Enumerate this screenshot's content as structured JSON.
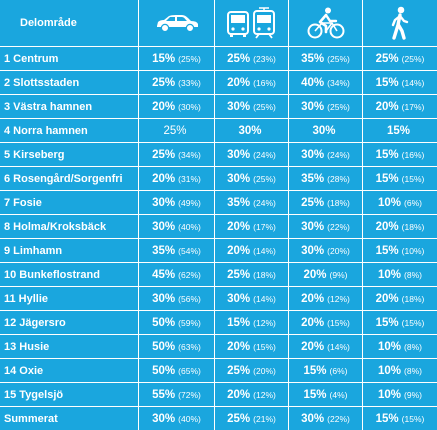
{
  "header": {
    "area_label": "Delområde",
    "icons": [
      "car-icon",
      "bus-train-icon",
      "bicycle-icon",
      "pedestrian-icon"
    ]
  },
  "rows": [
    {
      "area": "1 Centrum",
      "car": {
        "v": "15%",
        "p": "(25%)"
      },
      "transit": {
        "v": "25%",
        "p": "(23%)"
      },
      "bike": {
        "v": "35%",
        "p": "(25%)"
      },
      "walk": {
        "v": "25%",
        "p": "(25%)"
      }
    },
    {
      "area": "2 Slottsstaden",
      "car": {
        "v": "25%",
        "p": "(33%)"
      },
      "transit": {
        "v": "20%",
        "p": "(16%)"
      },
      "bike": {
        "v": "40%",
        "p": "(34%)"
      },
      "walk": {
        "v": "15%",
        "p": "(14%)"
      }
    },
    {
      "area": "3 Västra hamnen",
      "car": {
        "v": "20%",
        "p": "(30%)"
      },
      "transit": {
        "v": "30%",
        "p": "(25%)"
      },
      "bike": {
        "v": "30%",
        "p": "(25%)"
      },
      "walk": {
        "v": "20%",
        "p": "(17%)"
      }
    },
    {
      "area": "4 Norra hamnen",
      "car": {
        "v": "25%",
        "p": ""
      },
      "transit": {
        "v": "30%",
        "p": ""
      },
      "bike": {
        "v": "30%",
        "p": ""
      },
      "walk": {
        "v": "15%",
        "p": ""
      }
    },
    {
      "area": "5 Kirseberg",
      "car": {
        "v": "25%",
        "p": "(34%)"
      },
      "transit": {
        "v": "30%",
        "p": "(24%)"
      },
      "bike": {
        "v": "30%",
        "p": "(24%)"
      },
      "walk": {
        "v": "15%",
        "p": "(16%)"
      }
    },
    {
      "area": "6 Rosengård/Sorgenfri",
      "car": {
        "v": "20%",
        "p": "(31%)"
      },
      "transit": {
        "v": "30%",
        "p": "(25%)"
      },
      "bike": {
        "v": "35%",
        "p": "(28%)"
      },
      "walk": {
        "v": "15%",
        "p": "(15%)"
      }
    },
    {
      "area": "7 Fosie",
      "car": {
        "v": "30%",
        "p": "(49%)"
      },
      "transit": {
        "v": "35%",
        "p": "(24%)"
      },
      "bike": {
        "v": "25%",
        "p": "(18%)"
      },
      "walk": {
        "v": "10%",
        "p": "(6%)"
      }
    },
    {
      "area": "8 Holma/Kroksbäck",
      "car": {
        "v": "30%",
        "p": "(40%)"
      },
      "transit": {
        "v": "20%",
        "p": "(17%)"
      },
      "bike": {
        "v": "30%",
        "p": "(22%)"
      },
      "walk": {
        "v": "20%",
        "p": "(18%)"
      }
    },
    {
      "area": "9 Limhamn",
      "car": {
        "v": "35%",
        "p": "(54%)"
      },
      "transit": {
        "v": "20%",
        "p": "(14%)"
      },
      "bike": {
        "v": "30%",
        "p": "(20%)"
      },
      "walk": {
        "v": "15%",
        "p": "(10%)"
      }
    },
    {
      "area": "10 Bunkeflostrand",
      "car": {
        "v": "45%",
        "p": "(62%)"
      },
      "transit": {
        "v": "25%",
        "p": "(18%)"
      },
      "bike": {
        "v": "20%",
        "p": "(9%)"
      },
      "walk": {
        "v": "10%",
        "p": "(8%)"
      }
    },
    {
      "area": "11 Hyllie",
      "car": {
        "v": "30%",
        "p": "(56%)"
      },
      "transit": {
        "v": "30%",
        "p": "(14%)"
      },
      "bike": {
        "v": "20%",
        "p": "(12%)"
      },
      "walk": {
        "v": "20%",
        "p": "(18%)"
      }
    },
    {
      "area": "12 Jägersro",
      "car": {
        "v": "50%",
        "p": "(59%)"
      },
      "transit": {
        "v": "15%",
        "p": "(12%)"
      },
      "bike": {
        "v": "20%",
        "p": "(15%)"
      },
      "walk": {
        "v": "15%",
        "p": "(15%)"
      }
    },
    {
      "area": "13 Husie",
      "car": {
        "v": "50%",
        "p": "(63%)"
      },
      "transit": {
        "v": "20%",
        "p": "(15%)"
      },
      "bike": {
        "v": "20%",
        "p": "(14%)"
      },
      "walk": {
        "v": "10%",
        "p": "(8%)"
      }
    },
    {
      "area": "14 Oxie",
      "car": {
        "v": "50%",
        "p": "(65%)"
      },
      "transit": {
        "v": "25%",
        "p": "(20%)"
      },
      "bike": {
        "v": "15%",
        "p": "(6%)"
      },
      "walk": {
        "v": "10%",
        "p": "(8%)"
      }
    },
    {
      "area": "15 Tygelsjö",
      "car": {
        "v": "55%",
        "p": "(72%)"
      },
      "transit": {
        "v": "20%",
        "p": "(12%)"
      },
      "bike": {
        "v": "15%",
        "p": "(4%)"
      },
      "walk": {
        "v": "10%",
        "p": "(9%)"
      }
    },
    {
      "area": "Summerat",
      "car": {
        "v": "30%",
        "p": "(40%)"
      },
      "transit": {
        "v": "25%",
        "p": "(21%)"
      },
      "bike": {
        "v": "30%",
        "p": "(22%)"
      },
      "walk": {
        "v": "15%",
        "p": "(15%)"
      }
    }
  ],
  "colors": {
    "cell_background": "#1aa6de",
    "text": "#ffffff",
    "grid_lines": "#ffffff"
  }
}
